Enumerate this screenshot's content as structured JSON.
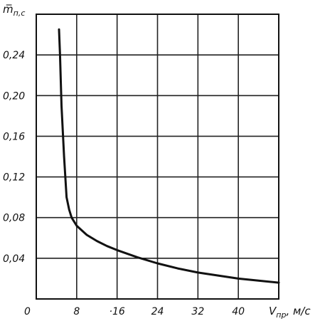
{
  "chart_data": {
    "type": "line",
    "ylabel": {
      "main": "m̅",
      "sub": "п,с"
    },
    "xlabel": {
      "main": "V",
      "sub": "пр",
      "unit": ", м/с"
    },
    "x_origin_label": "0",
    "xlim": [
      0,
      48
    ],
    "ylim": [
      0,
      0.28
    ],
    "xticks": [
      8,
      16,
      24,
      32,
      40
    ],
    "xtick_labels": [
      "8",
      "·16",
      "24",
      "32",
      "40"
    ],
    "yticks": [
      0.04,
      0.08,
      0.12,
      0.16,
      0.2,
      0.24
    ],
    "ytick_labels": [
      "0,04",
      "0,08",
      "0,12",
      "0,16",
      "0,20",
      "0,24"
    ],
    "grid": true,
    "series": [
      {
        "x": [
          4.5,
          4.7,
          5.0,
          5.5,
          6.0,
          6.5,
          7.0,
          8.0,
          10.0,
          12.0,
          14.0,
          16.0,
          20.0,
          24.0,
          28.0,
          32.0,
          36.0,
          40.0,
          44.0,
          48.0
        ],
        "y": [
          0.265,
          0.24,
          0.19,
          0.14,
          0.1,
          0.088,
          0.08,
          0.072,
          0.063,
          0.057,
          0.052,
          0.048,
          0.041,
          0.035,
          0.03,
          0.026,
          0.023,
          0.02,
          0.018,
          0.016
        ]
      }
    ]
  }
}
